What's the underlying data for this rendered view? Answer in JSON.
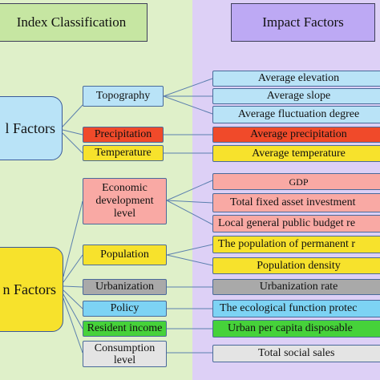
{
  "headers": {
    "left": "Index Classification",
    "right": "Impact Factors"
  },
  "groups": {
    "natural": "l  Factors",
    "human": "n Factors"
  },
  "categories": {
    "topography": "Topography",
    "precipitation": "Precipitation",
    "temperature": "Temperature",
    "economic": "Economic development level",
    "population": "Population",
    "urbanization": "Urbanization",
    "policy": "Policy",
    "resident_income": "Resident income",
    "consumption": "Consumption level"
  },
  "factors": {
    "average_elevation": "Average elevation",
    "average_slope": "Average slope",
    "average_fluctuation": "Average fluctuation degree",
    "average_precipitation": "Average precipitation",
    "average_temperature": "Average temperature",
    "gdp": "GDP",
    "total_fixed_asset": "Total fixed asset investment",
    "local_budget": "Local general public budget re",
    "permanent_population": "The population of permanent r",
    "population_density": "Population density",
    "urbanization_rate": "Urbanization rate",
    "ecological_function": "The ecological function protec",
    "urban_income": "Urban per capita disposable",
    "total_social_sales": "Total social sales"
  },
  "colors": {
    "left_panel": "#dff0c9",
    "right_panel": "#ddd0f6",
    "light_blue": "#b9e3f7",
    "red": "#f04a2a",
    "yellow": "#f7e22c",
    "pink": "#f9a9a4",
    "gray": "#a9a9a9",
    "sky_blue": "#7dd3f4",
    "green": "#46d23a",
    "light_gray": "#e4e4e4"
  }
}
